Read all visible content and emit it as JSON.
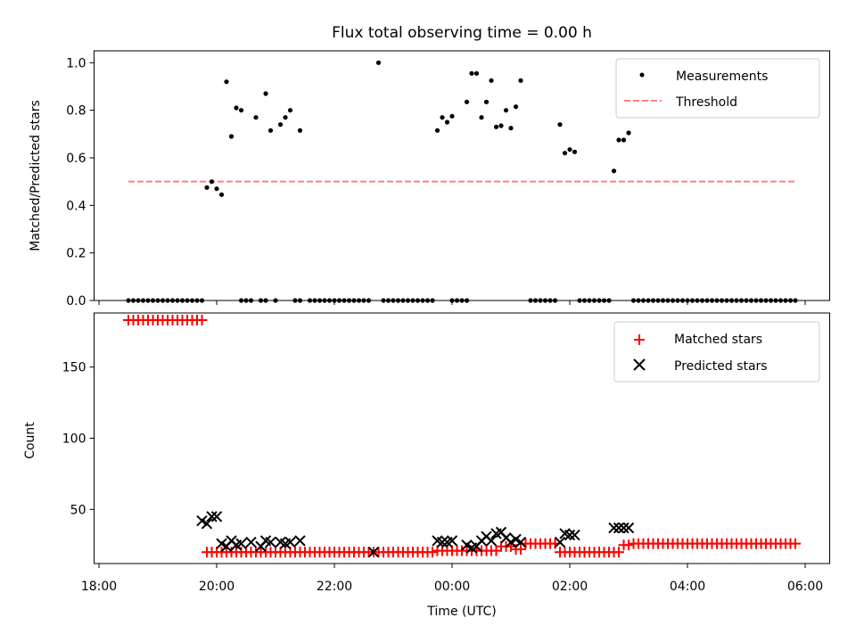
{
  "title": "Flux total observing time = 0.00 h",
  "chart_data": [
    {
      "type": "scatter",
      "panel": "top",
      "ylabel": "Matched/Predicted stars",
      "ylim": [
        0,
        1.05
      ],
      "yticks": [
        0.0,
        0.2,
        0.4,
        0.6,
        0.8,
        1.0
      ],
      "ytick_labels": [
        "0.0",
        "0.2",
        "0.4",
        "0.6",
        "0.8",
        "1.0"
      ],
      "legend": {
        "position": "top-right",
        "entries": [
          "Measurements",
          "Threshold"
        ]
      },
      "threshold": {
        "value": 0.5,
        "x_start": "18:30",
        "x_end": "05:50",
        "color": "#ff8080"
      },
      "measurements": {
        "color": "#000000",
        "points": [
          [
            "19:50",
            0.475
          ],
          [
            "19:55",
            0.5
          ],
          [
            "20:00",
            0.47
          ],
          [
            "20:05",
            0.445
          ],
          [
            "20:10",
            0.92
          ],
          [
            "20:15",
            0.69
          ],
          [
            "20:20",
            0.81
          ],
          [
            "20:25",
            0.8
          ],
          [
            "20:40",
            0.77
          ],
          [
            "20:50",
            0.87
          ],
          [
            "20:55",
            0.715
          ],
          [
            "21:05",
            0.74
          ],
          [
            "21:10",
            0.77
          ],
          [
            "21:15",
            0.8
          ],
          [
            "21:25",
            0.715
          ],
          [
            "22:45",
            1.0
          ],
          [
            "23:45",
            0.715
          ],
          [
            "23:50",
            0.77
          ],
          [
            "23:55",
            0.75
          ],
          [
            "00:00",
            0.775
          ],
          [
            "00:15",
            0.835
          ],
          [
            "00:20",
            0.955
          ],
          [
            "00:25",
            0.955
          ],
          [
            "00:30",
            0.77
          ],
          [
            "00:35",
            0.835
          ],
          [
            "00:40",
            0.925
          ],
          [
            "00:45",
            0.73
          ],
          [
            "00:50",
            0.735
          ],
          [
            "00:55",
            0.8
          ],
          [
            "01:00",
            0.725
          ],
          [
            "01:05",
            0.815
          ],
          [
            "01:10",
            0.925
          ],
          [
            "01:50",
            0.74
          ],
          [
            "01:55",
            0.62
          ],
          [
            "02:00",
            0.635
          ],
          [
            "02:05",
            0.625
          ],
          [
            "02:45",
            0.545
          ],
          [
            "02:50",
            0.675
          ],
          [
            "02:55",
            0.675
          ],
          [
            "03:00",
            0.705
          ]
        ],
        "zero_runs": [
          [
            "18:30",
            "19:45"
          ],
          [
            "20:25",
            "20:35"
          ],
          [
            "20:45",
            "20:50"
          ],
          [
            "21:00",
            "21:00"
          ],
          [
            "21:20",
            "21:25"
          ],
          [
            "21:35",
            "22:35"
          ],
          [
            "22:50",
            "23:40"
          ],
          [
            "00:00",
            "00:15"
          ],
          [
            "01:20",
            "01:45"
          ],
          [
            "02:10",
            "02:40"
          ],
          [
            "03:05",
            "05:50"
          ]
        ]
      }
    },
    {
      "type": "scatter",
      "panel": "bottom",
      "xlabel": "Time (UTC)",
      "ylabel": "Count",
      "ylim": [
        12,
        188
      ],
      "yticks": [
        50,
        100,
        150
      ],
      "ytick_labels": [
        "50",
        "100",
        "150"
      ],
      "xlim": [
        "17:55",
        "06:25"
      ],
      "xticks": [
        "18:00",
        "20:00",
        "22:00",
        "00:00",
        "02:00",
        "04:00",
        "06:00"
      ],
      "xtick_labels": [
        "18:00",
        "20:00",
        "22:00",
        "00:00",
        "02:00",
        "04:00",
        "06:00"
      ],
      "legend": {
        "position": "top-right",
        "entries": [
          "Matched stars",
          "Predicted stars"
        ]
      },
      "series": [
        {
          "name": "Matched stars",
          "marker": "+",
          "color": "#ff0000",
          "runs": [
            [
              "18:30",
              "19:45",
              183
            ],
            [
              "19:50",
              "23:40",
              20
            ],
            [
              "23:45",
              "00:45",
              21
            ],
            [
              "00:50",
              "01:00",
              24
            ],
            [
              "01:05",
              "01:10",
              22
            ],
            [
              "01:15",
              "01:45",
              26
            ],
            [
              "01:50",
              "02:40",
              20
            ],
            [
              "02:45",
              "02:50",
              20
            ],
            [
              "02:55",
              "03:00",
              25
            ],
            [
              "03:05",
              "05:50",
              26
            ]
          ]
        },
        {
          "name": "Predicted stars",
          "marker": "x",
          "color": "#000000",
          "points": [
            [
              "19:45",
              42
            ],
            [
              "19:50",
              40
            ],
            [
              "19:55",
              45
            ],
            [
              "20:00",
              45
            ],
            [
              "20:05",
              26
            ],
            [
              "20:10",
              24
            ],
            [
              "20:15",
              28
            ],
            [
              "20:20",
              25
            ],
            [
              "20:25",
              26
            ],
            [
              "20:35",
              27
            ],
            [
              "20:45",
              24
            ],
            [
              "20:50",
              28
            ],
            [
              "20:55",
              27
            ],
            [
              "21:05",
              27
            ],
            [
              "21:10",
              26
            ],
            [
              "21:15",
              27
            ],
            [
              "21:25",
              28
            ],
            [
              "22:40",
              20
            ],
            [
              "23:45",
              28
            ],
            [
              "23:50",
              27
            ],
            [
              "23:55",
              27
            ],
            [
              "00:00",
              28
            ],
            [
              "00:15",
              25
            ],
            [
              "00:20",
              23
            ],
            [
              "00:25",
              24
            ],
            [
              "00:30",
              28
            ],
            [
              "00:35",
              31
            ],
            [
              "00:40",
              28
            ],
            [
              "00:45",
              33
            ],
            [
              "00:50",
              34
            ],
            [
              "00:55",
              30
            ],
            [
              "01:00",
              27
            ],
            [
              "01:05",
              29
            ],
            [
              "01:10",
              27
            ],
            [
              "01:50",
              27
            ],
            [
              "01:55",
              33
            ],
            [
              "02:00",
              32
            ],
            [
              "02:05",
              32
            ],
            [
              "02:45",
              37
            ],
            [
              "02:50",
              37
            ],
            [
              "02:55",
              37
            ],
            [
              "03:00",
              37
            ]
          ]
        }
      ]
    }
  ]
}
